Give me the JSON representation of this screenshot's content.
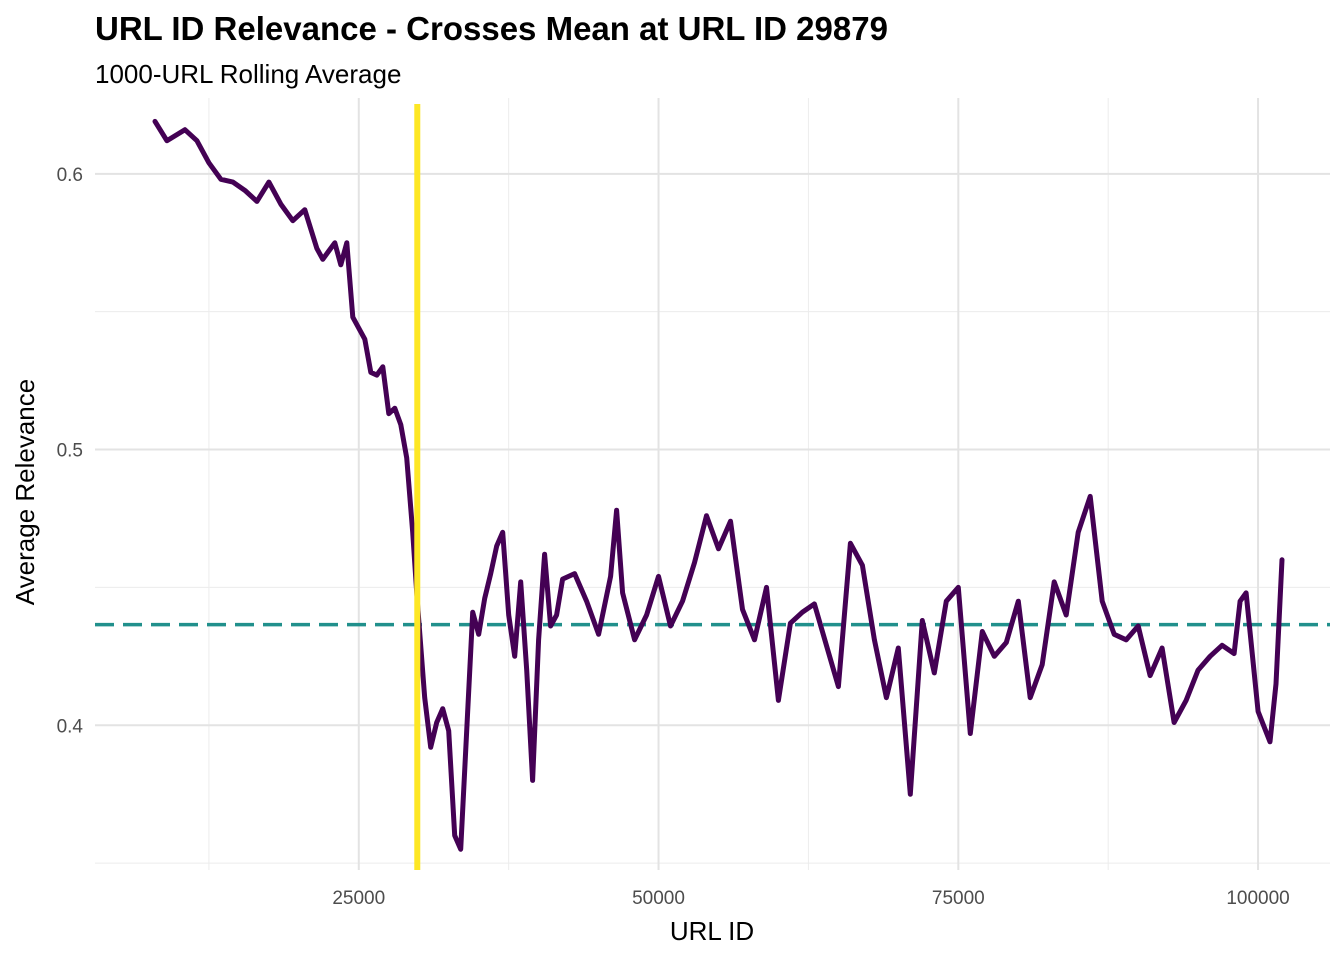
{
  "chart_data": {
    "type": "line",
    "title": "URL ID Relevance - Crosses Mean at URL ID 29879",
    "subtitle": "1000-URL Rolling Average",
    "xlabel": "URL ID",
    "ylabel": "Average Relevance",
    "xlim": [
      3000,
      106000
    ],
    "ylim": [
      0.3475,
      0.6275
    ],
    "x_ticks": [
      25000,
      50000,
      75000,
      100000
    ],
    "x_tick_labels": [
      "25000",
      "50000",
      "75000",
      "100000"
    ],
    "y_ticks": [
      0.4,
      0.5,
      0.6
    ],
    "y_tick_labels": [
      "0.4",
      "0.5",
      "0.6"
    ],
    "mean_line": {
      "y": 0.4365,
      "style": "dashed",
      "color": "#21908C"
    },
    "cross_line": {
      "x": 29879,
      "color": "#FDE725"
    },
    "series": [
      {
        "name": "rolling_average",
        "color": "#440154",
        "x": [
          8000,
          9000,
          10500,
          11500,
          12500,
          13500,
          14500,
          15500,
          16500,
          17500,
          18500,
          19500,
          20500,
          21500,
          22000,
          22500,
          23000,
          23500,
          24000,
          24500,
          25000,
          25500,
          26000,
          26500,
          27000,
          27500,
          28000,
          28500,
          29000,
          29500,
          29879,
          30500,
          31000,
          31500,
          32000,
          32500,
          33000,
          33500,
          34000,
          34500,
          35000,
          35500,
          36000,
          36500,
          37000,
          37500,
          38000,
          38500,
          39000,
          39500,
          40000,
          40500,
          41000,
          41500,
          42000,
          43000,
          44000,
          45000,
          46000,
          46500,
          47000,
          48000,
          49000,
          50000,
          51000,
          52000,
          53000,
          54000,
          55000,
          56000,
          57000,
          58000,
          59000,
          60000,
          61000,
          62000,
          63000,
          64000,
          65000,
          66000,
          67000,
          68000,
          69000,
          70000,
          71000,
          72000,
          73000,
          74000,
          75000,
          76000,
          77000,
          78000,
          79000,
          80000,
          81000,
          82000,
          83000,
          84000,
          85000,
          86000,
          87000,
          88000,
          89000,
          90000,
          91000,
          92000,
          93000,
          94000,
          95000,
          96000,
          97000,
          98000,
          98500,
          99000,
          100000,
          101000,
          101500,
          102000
        ],
        "y": [
          0.619,
          0.612,
          0.616,
          0.612,
          0.604,
          0.598,
          0.597,
          0.594,
          0.59,
          0.597,
          0.589,
          0.583,
          0.587,
          0.573,
          0.569,
          0.572,
          0.575,
          0.567,
          0.575,
          0.548,
          0.544,
          0.54,
          0.528,
          0.527,
          0.53,
          0.513,
          0.515,
          0.509,
          0.497,
          0.47,
          0.445,
          0.41,
          0.392,
          0.401,
          0.406,
          0.398,
          0.36,
          0.355,
          0.398,
          0.441,
          0.433,
          0.446,
          0.455,
          0.465,
          0.47,
          0.44,
          0.425,
          0.452,
          0.42,
          0.38,
          0.431,
          0.462,
          0.436,
          0.44,
          0.453,
          0.455,
          0.445,
          0.433,
          0.454,
          0.478,
          0.448,
          0.431,
          0.44,
          0.454,
          0.436,
          0.445,
          0.459,
          0.476,
          0.464,
          0.474,
          0.442,
          0.431,
          0.45,
          0.409,
          0.437,
          0.441,
          0.444,
          0.429,
          0.414,
          0.466,
          0.458,
          0.431,
          0.41,
          0.428,
          0.375,
          0.438,
          0.419,
          0.445,
          0.45,
          0.397,
          0.434,
          0.425,
          0.43,
          0.445,
          0.41,
          0.422,
          0.452,
          0.44,
          0.47,
          0.483,
          0.445,
          0.433,
          0.431,
          0.436,
          0.418,
          0.428,
          0.401,
          0.409,
          0.42,
          0.425,
          0.429,
          0.426,
          0.445,
          0.448,
          0.405,
          0.394,
          0.415,
          0.46
        ]
      }
    ]
  }
}
